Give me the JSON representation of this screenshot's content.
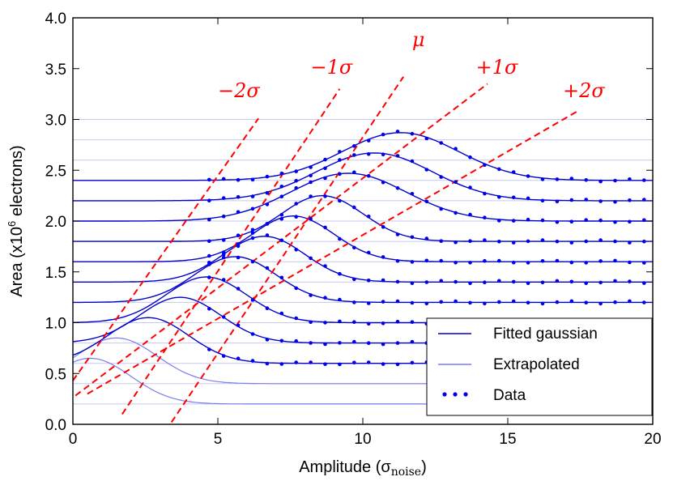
{
  "chart_data": {
    "type": "line",
    "xlabel": "Amplitude (σ",
    "xlabel_sub": "noise",
    "xlabel_close": ")",
    "ylabel": "Area (x10",
    "ylabel_sup": "6",
    "ylabel_tail": " electrons)",
    "xlim": [
      0,
      20
    ],
    "ylim": [
      0,
      4.0
    ],
    "x_ticks": [
      0,
      5,
      10,
      15,
      20
    ],
    "x_tick_labels": [
      "0",
      "5",
      "10",
      "15",
      "20"
    ],
    "y_ticks": [
      0,
      0.5,
      1.0,
      1.5,
      2.0,
      2.5,
      3.0,
      3.5,
      4.0
    ],
    "y_tick_labels": [
      "0.0",
      "0.5",
      "1.0",
      "1.5",
      "2.0",
      "2.5",
      "3.0",
      "3.5",
      "4.0"
    ],
    "baselines": [
      0.2,
      0.4,
      0.6,
      0.8,
      1.0,
      1.2,
      1.4,
      1.6,
      1.8,
      2.0,
      2.2,
      2.4,
      2.6,
      2.8,
      3.0
    ],
    "gaussian_centers": [
      0.6,
      1.5,
      2.6,
      3.7,
      4.6,
      5.6,
      6.6,
      7.6,
      8.6,
      9.5,
      10.4,
      11.3
    ],
    "gaussian_sigma": 1.4,
    "gaussian_peak_height": 0.45,
    "gaussian_sigma_upper": 2.0,
    "gaussian_peak_height_upper": 0.47,
    "fitted_count": 10,
    "data_x_start": 4.7,
    "data_x_step": 0.5,
    "series": [
      {
        "name": "Fitted gaussian",
        "color": "#0000cc"
      },
      {
        "name": "Extrapolated",
        "color": "#7b7bf0"
      },
      {
        "name": "Data",
        "color": "#0000ee"
      }
    ],
    "sigma_lines": [
      {
        "label": "−2σ",
        "points": [
          [
            0.0,
            0.43
          ],
          [
            6.4,
            3.01
          ]
        ]
      },
      {
        "label": "−1σ",
        "points": [
          [
            1.7,
            0.1
          ],
          [
            9.2,
            3.3
          ]
        ]
      },
      {
        "label": "μ",
        "points": [
          [
            3.4,
            0.02
          ],
          [
            11.4,
            3.42
          ]
        ]
      },
      {
        "label": "+1σ",
        "points": [
          [
            -0.2,
            0.22
          ],
          [
            14.3,
            3.35
          ]
        ]
      },
      {
        "label": "+2σ",
        "points": [
          [
            0.5,
            0.3
          ],
          [
            17.4,
            3.08
          ]
        ]
      }
    ],
    "sigma_label_positions": [
      {
        "label": "−2σ",
        "x": 5.0,
        "y": 3.22
      },
      {
        "label": "−1σ",
        "x": 8.2,
        "y": 3.45
      },
      {
        "label": "μ",
        "x": 11.7,
        "y": 3.72
      },
      {
        "label": "+1σ",
        "x": 13.9,
        "y": 3.45
      },
      {
        "label": "+2σ",
        "x": 16.9,
        "y": 3.22
      }
    ],
    "legend_position": "lower-right",
    "sigma_color": "#ff0000",
    "grid_color": "#c8c8f0"
  }
}
